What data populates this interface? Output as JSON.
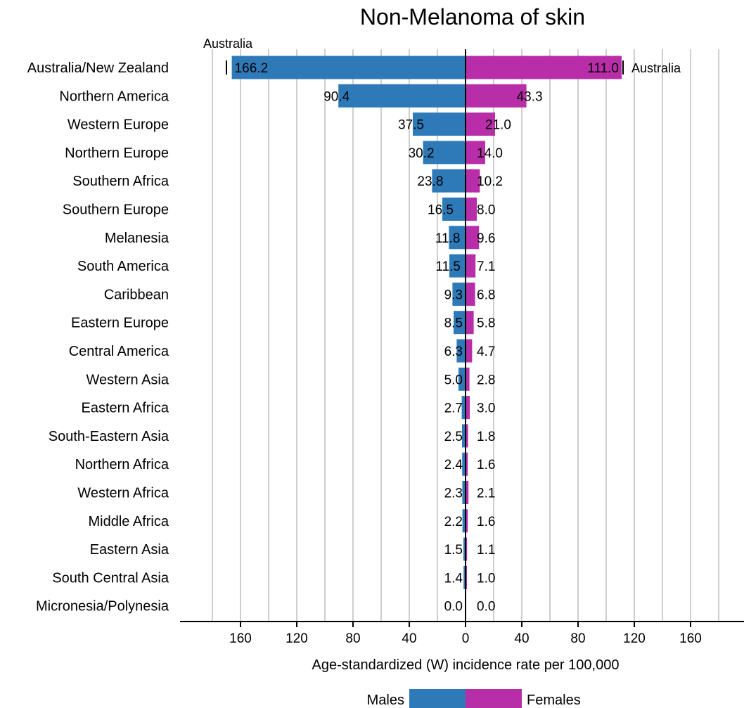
{
  "chart_data": {
    "type": "bar",
    "orientation": "horizontal-diverging",
    "title": "Non-Melanoma of skin",
    "xlabel": "Age-standardized (W) incidence rate per 100,000",
    "xlim": [
      -180,
      180
    ],
    "grid": true,
    "legend_position": "bottom",
    "tick_values": [
      -160,
      -120,
      -80,
      -40,
      0,
      40,
      80,
      120,
      160
    ],
    "tick_labels": [
      "160",
      "120",
      "80",
      "40",
      "0",
      "40",
      "80",
      "120",
      "160"
    ],
    "categories": [
      "Australia/New Zealand",
      "Northern America",
      "Western Europe",
      "Northern Europe",
      "Southern Africa",
      "Southern Europe",
      "Melanesia",
      "South America",
      "Caribbean",
      "Eastern Europe",
      "Central America",
      "Western Asia",
      "Eastern Africa",
      "South-Eastern Asia",
      "Northern Africa",
      "Western Africa",
      "Middle Africa",
      "Eastern Asia",
      "South Central Asia",
      "Micronesia/Polynesia"
    ],
    "series": [
      {
        "name": "Males",
        "color": "#2e7ab8",
        "side": "left",
        "values": [
          166.2,
          90.4,
          37.5,
          30.2,
          23.8,
          16.5,
          11.8,
          11.5,
          9.3,
          8.5,
          6.3,
          5.0,
          2.7,
          2.5,
          2.4,
          2.3,
          2.2,
          1.5,
          1.4,
          0.0
        ],
        "value_labels": [
          "166.2",
          "90.4",
          "37.5",
          "30.2",
          "23.8",
          "16.5",
          "11.8",
          "11.5",
          "9.3",
          "8.5",
          "6.3",
          "5.0",
          "2.7",
          "2.5",
          "2.4",
          "2.3",
          "2.2",
          "1.5",
          "1.4",
          "0.0"
        ]
      },
      {
        "name": "Females",
        "color": "#b82ea8",
        "side": "right",
        "values": [
          111.0,
          43.3,
          21.0,
          14.0,
          10.2,
          8.0,
          9.6,
          7.1,
          6.8,
          5.8,
          4.7,
          2.8,
          3.0,
          1.8,
          1.6,
          2.1,
          1.6,
          1.1,
          1.0,
          0.0
        ],
        "value_labels": [
          "111.0",
          "43.3",
          "21.0",
          "14.0",
          "10.2",
          "8.0",
          "9.6",
          "7.1",
          "6.8",
          "5.8",
          "4.7",
          "2.8",
          "3.0",
          "1.8",
          "1.6",
          "2.1",
          "1.6",
          "1.1",
          "1.0",
          "0.0"
        ]
      }
    ],
    "annotations": [
      {
        "text": "Australia",
        "series": "Males",
        "value": 170
      },
      {
        "text": "Australia",
        "series": "Females",
        "value": 111
      }
    ],
    "axis_color": "#000000",
    "grid_color": "#bdbdbd"
  }
}
